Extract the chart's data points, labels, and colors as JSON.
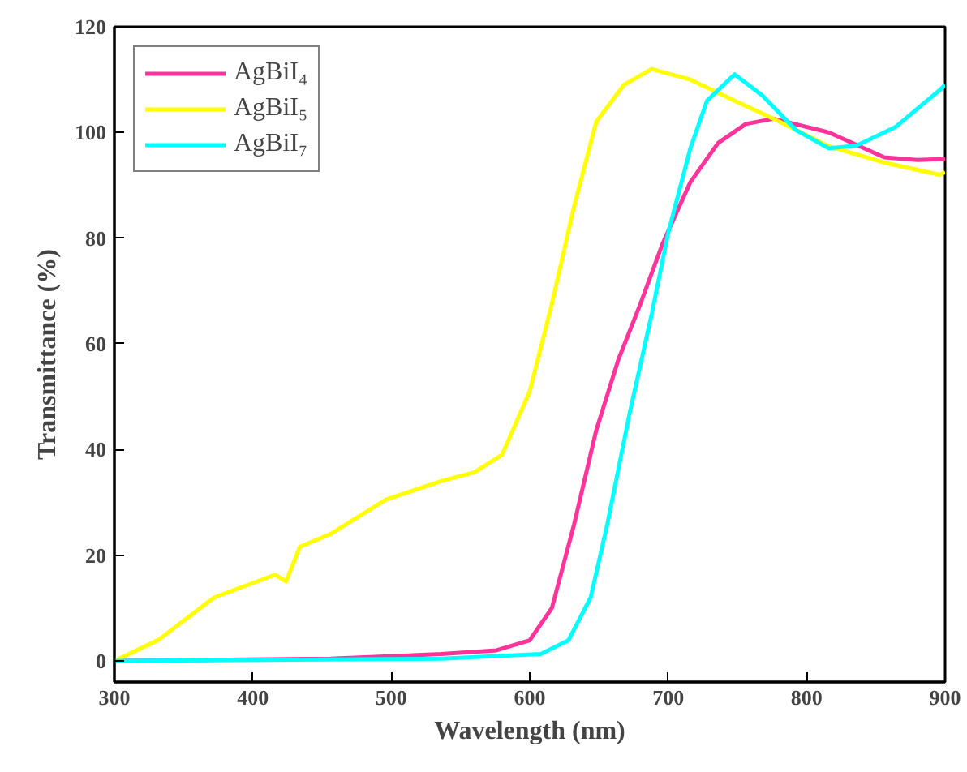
{
  "chart_data": {
    "type": "line",
    "xlabel": "Wavelength (nm)",
    "ylabel": "Transmittance (%)",
    "xlim": [
      300,
      900
    ],
    "ylim": [
      -4,
      120
    ],
    "xticks": [
      300,
      400,
      500,
      600,
      700,
      800,
      900
    ],
    "yticks": [
      0,
      20,
      40,
      60,
      80,
      100,
      120
    ],
    "grid": false,
    "legend": "top left",
    "line_style": "solid",
    "marker": "none",
    "series": [
      {
        "name": "AgBiI₄",
        "color": "#ff3399",
        "x": [
          300,
          456,
          536,
          576,
          600,
          616,
          632,
          648,
          664,
          680,
          696,
          716,
          736,
          756,
          776,
          816,
          856,
          880,
          900
        ],
        "values": [
          0,
          0.4,
          1.3,
          2,
          3.9,
          10,
          25.8,
          43.6,
          57,
          67.6,
          79,
          90.6,
          98,
          101.6,
          102.6,
          100,
          95.3,
          94.8,
          95
        ]
      },
      {
        "name": "AgBiI₅",
        "color": "#ffff00",
        "x": [
          300,
          332,
          372,
          416,
          424,
          434,
          456,
          496,
          536,
          560,
          580,
          600,
          616,
          632,
          648,
          668,
          688,
          716,
          748,
          776,
          816,
          856,
          896,
          900
        ],
        "values": [
          0,
          4,
          12,
          16.3,
          15,
          21.6,
          24,
          30.5,
          34,
          35.7,
          39,
          51,
          67.6,
          86,
          102,
          109,
          112,
          110,
          106,
          102.6,
          97.4,
          94.3,
          92,
          92.5
        ]
      },
      {
        "name": "AgBiI₇",
        "color": "#00ffff",
        "x": [
          300,
          536,
          608,
          628,
          644,
          656,
          672,
          688,
          700,
          716,
          728,
          748,
          768,
          792,
          816,
          836,
          864,
          896,
          900
        ],
        "values": [
          0,
          0.4,
          1.3,
          3.9,
          12,
          25.8,
          46.7,
          65.5,
          81,
          97,
          106,
          111,
          107,
          100.5,
          97,
          97.5,
          101,
          108,
          109
        ]
      }
    ]
  }
}
